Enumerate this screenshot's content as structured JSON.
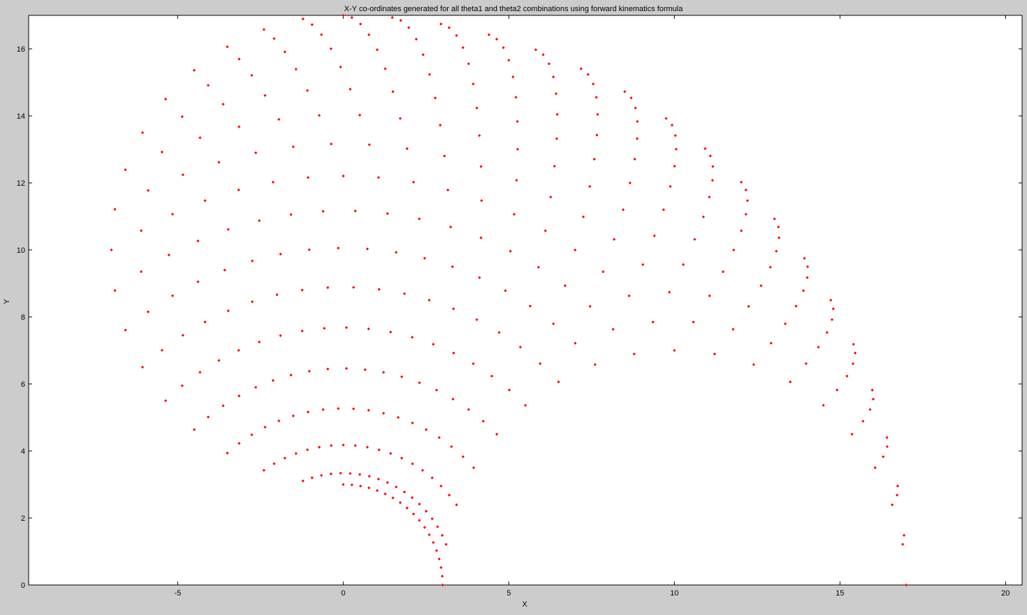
{
  "chart_data": {
    "type": "scatter",
    "title": "X-Y co-ordinates generated for all theta1 and theta2 combinations using forward kinematics formula",
    "xlabel": "X",
    "ylabel": "Y",
    "xlim": [
      -9.5,
      20.5
    ],
    "ylim": [
      0,
      17
    ],
    "xticks": [
      -5,
      0,
      5,
      10,
      15,
      20
    ],
    "yticks": [
      0,
      2,
      4,
      6,
      8,
      10,
      12,
      14,
      16
    ],
    "grid": false,
    "marker_color": "#ff0000",
    "marker": "point",
    "generator": {
      "l1": 10,
      "l2": 7,
      "theta1_deg": [
        0,
        90,
        5
      ],
      "theta2_deg": [
        0,
        180,
        10
      ]
    }
  },
  "colors": {
    "figure_background": "#cccccc",
    "axes_background": "#ffffff",
    "axes_frame": "#000000"
  }
}
